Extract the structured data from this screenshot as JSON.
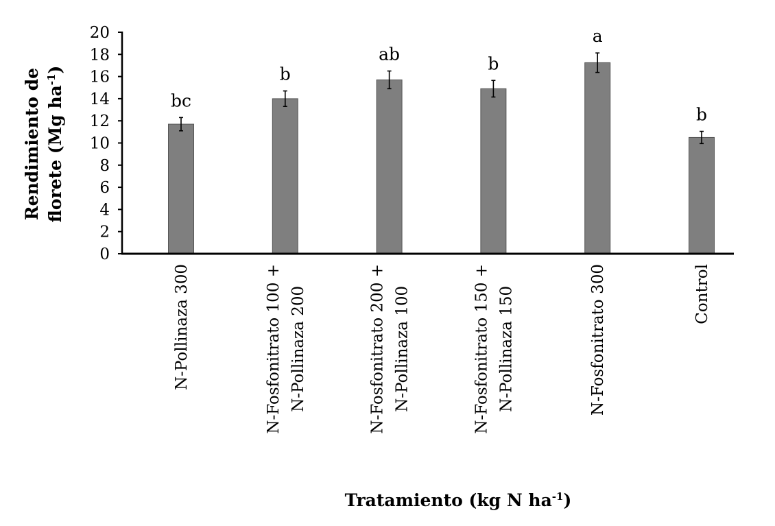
{
  "chart_data": {
    "type": "bar",
    "title": "",
    "xlabel": "Tratamiento (kg N ha",
    "xlabel_sup": "-1",
    "xlabel_end": ")",
    "ylabel_line1": "Rendimiento de",
    "ylabel_line2": "florete (Mg ha",
    "ylabel_sup": "-1",
    "ylabel_end": ")",
    "ylim": [
      0,
      20
    ],
    "yticks": [
      0,
      2,
      4,
      6,
      8,
      10,
      12,
      14,
      16,
      18,
      20
    ],
    "grid": false,
    "categories": [
      [
        "N-Pollinaza 300"
      ],
      [
        "N-Fosfonitrato 100 +",
        "N-Pollinaza 200"
      ],
      [
        "N-Fosfonitrato 200 +",
        "N-Pollinaza 100"
      ],
      [
        "N-Fosfonitrato 150 +",
        "N-Pollinaza 150"
      ],
      [
        "N-Fosfonitrato 300"
      ],
      [
        "Control"
      ]
    ],
    "values": [
      11.7,
      14.0,
      15.7,
      14.9,
      17.25,
      10.5
    ],
    "errors": [
      0.6,
      0.7,
      0.8,
      0.75,
      0.88,
      0.55
    ],
    "letters": [
      "bc",
      "b",
      "ab",
      "b",
      "a",
      "b"
    ],
    "bar_color": "#7f7f7f"
  }
}
